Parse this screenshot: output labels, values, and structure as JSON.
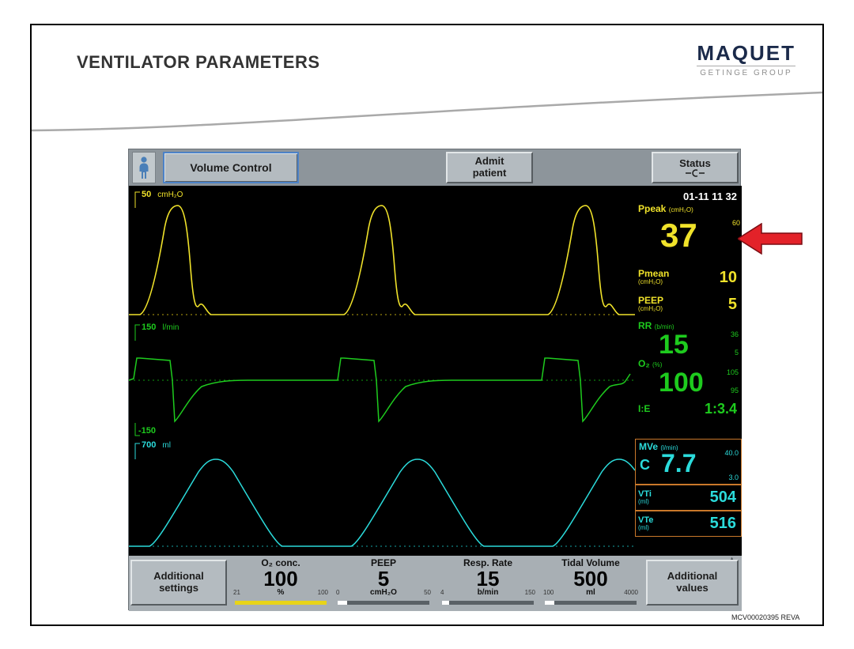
{
  "slide": {
    "title": "VENTILATOR PARAMETERS",
    "logo_main": "MAQUET",
    "logo_sub": "GETINGE GROUP",
    "doc_code": "MCV00020395 REVA"
  },
  "colors": {
    "pressure_yellow": "#f0e22a",
    "flow_green": "#1ecb1e",
    "volume_cyan": "#2bdbdb",
    "alarm_box_orange": "#c9782a",
    "arrow_red": "#e32229"
  },
  "topbar": {
    "mode": "Volume Control",
    "admit": "Admit patient",
    "status": "Status"
  },
  "scales": {
    "pressure_value": "50",
    "pressure_unit": "cmH₂O",
    "flow_value": "150",
    "flow_unit": "l/min",
    "flow_low": "-150",
    "volume_value": "700",
    "volume_unit": "ml"
  },
  "monitor": {
    "datetime": "01-11  11 32",
    "ppeak": {
      "label": "Ppeak",
      "unit": "(cmH₂O)",
      "value": "37",
      "high": "60"
    },
    "pmean": {
      "label": "Pmean",
      "unit": "(cmH₂O)",
      "value": "10"
    },
    "peep": {
      "label": "PEEP",
      "unit": "(cmH₂O)",
      "value": "5"
    },
    "rr": {
      "label": "RR",
      "unit": "(b/min)",
      "value": "15",
      "high": "36",
      "low": "5"
    },
    "o2": {
      "label": "O₂",
      "unit": "(%)",
      "value": "100",
      "high": "105",
      "low": "95"
    },
    "ie": {
      "label": "I:E",
      "value": "1:3.4"
    },
    "mve": {
      "label": "MVe",
      "unit": "(l/min)",
      "prefix": "C",
      "value": "7.7",
      "high": "40.0",
      "low": "3.0"
    },
    "vti": {
      "label": "VTi",
      "unit": "(ml)",
      "value": "504"
    },
    "vte": {
      "label": "VTe",
      "unit": "(ml)",
      "value": "516"
    }
  },
  "bottombar": {
    "additional_settings": "Additional settings",
    "additional_values": "Additional values",
    "knobs": [
      {
        "label": "O₂ conc.",
        "value": "100",
        "unit": "%",
        "min": "21",
        "max": "100",
        "fill_pct": 100,
        "fill_color": "#e8d419"
      },
      {
        "label": "PEEP",
        "value": "5",
        "unit": "cmH₂O",
        "min": "0",
        "max": "50",
        "fill_pct": 10,
        "fill_color": "#ffffff"
      },
      {
        "label": "Resp. Rate",
        "value": "15",
        "unit": "b/min",
        "min": "4",
        "max": "150",
        "fill_pct": 8,
        "fill_color": "#ffffff"
      },
      {
        "label": "Tidal Volume",
        "value": "500",
        "unit": "ml",
        "min": "100",
        "max": "4000",
        "fill_pct": 10,
        "fill_color": "#ffffff"
      }
    ]
  }
}
